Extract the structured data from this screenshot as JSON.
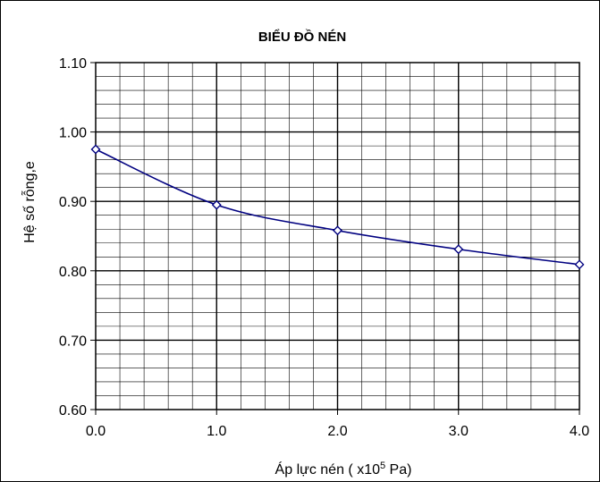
{
  "chart_data": {
    "type": "line",
    "title": "BIỂU ĐỒ NÉN",
    "xlabel_prefix": "Áp lực nén ( x10",
    "xlabel_sup": "5",
    "xlabel_suffix": " Pa)",
    "ylabel": "Hệ số rỗng,e",
    "xlim": [
      0,
      4
    ],
    "ylim": [
      0.6,
      1.1
    ],
    "x_ticks": [
      "0.0",
      "1.0",
      "2.0",
      "3.0",
      "4.0"
    ],
    "y_ticks": [
      "0.60",
      "0.70",
      "0.80",
      "0.90",
      "1.00",
      "1.10"
    ],
    "grid": true,
    "series": [
      {
        "x": [
          0,
          1,
          2,
          3,
          4
        ],
        "y": [
          0.975,
          0.895,
          0.858,
          0.831,
          0.809
        ],
        "color": "#000080",
        "marker": "diamond"
      }
    ]
  }
}
